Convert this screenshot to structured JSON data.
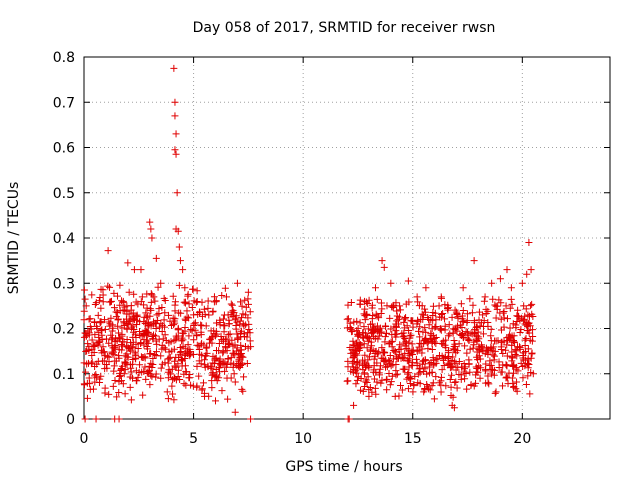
{
  "chart_data": {
    "type": "scatter",
    "title": "Day 058 of 2017, SRMTID for receiver rwsn",
    "xlabel": "GPS time / hours",
    "ylabel": "SRMTID / TECUs",
    "xlim": [
      0,
      24
    ],
    "ylim": [
      0,
      0.8
    ],
    "x_ticks": [
      0,
      5,
      10,
      15,
      20
    ],
    "x_tick_labels": [
      "0",
      "5",
      "10",
      "15",
      "20"
    ],
    "y_ticks": [
      0,
      0.1,
      0.2,
      0.3,
      0.4,
      0.5,
      0.6,
      0.7,
      0.8
    ],
    "y_tick_labels": [
      "0",
      "0.1",
      "0.2",
      "0.3",
      "0.4",
      "0.5",
      "0.6",
      "0.7",
      "0.8"
    ],
    "grid": true,
    "marker": "plus",
    "marker_color": "#e00000",
    "segments": [
      {
        "x_start": 0.0,
        "x_end": 7.6,
        "typical_low": 0.08,
        "typical_high": 0.26
      },
      {
        "x_start": 12.0,
        "x_end": 20.5,
        "typical_low": 0.08,
        "typical_high": 0.24
      }
    ],
    "points": [
      [
        0.02,
        0.285
      ],
      [
        0.05,
        0.265
      ],
      [
        0.1,
        0.25
      ],
      [
        0.6,
        0.2
      ],
      [
        1.1,
        0.372
      ],
      [
        2.0,
        0.345
      ],
      [
        2.3,
        0.33
      ],
      [
        2.6,
        0.33
      ],
      [
        3.0,
        0.435
      ],
      [
        3.05,
        0.42
      ],
      [
        3.1,
        0.4
      ],
      [
        3.3,
        0.355
      ],
      [
        3.5,
        0.3
      ],
      [
        3.5,
        0.09
      ],
      [
        3.8,
        0.06
      ],
      [
        3.85,
        0.045
      ],
      [
        4.1,
        0.775
      ],
      [
        4.15,
        0.7
      ],
      [
        4.15,
        0.67
      ],
      [
        4.2,
        0.63
      ],
      [
        4.15,
        0.595
      ],
      [
        4.2,
        0.585
      ],
      [
        4.25,
        0.5
      ],
      [
        4.2,
        0.42
      ],
      [
        4.3,
        0.415
      ],
      [
        4.35,
        0.38
      ],
      [
        4.4,
        0.35
      ],
      [
        4.5,
        0.33
      ],
      [
        4.6,
        0.29
      ],
      [
        5.0,
        0.23
      ],
      [
        5.5,
        0.05
      ],
      [
        6.0,
        0.04
      ],
      [
        6.5,
        0.27
      ],
      [
        6.8,
        0.24
      ],
      [
        6.9,
        0.015
      ],
      [
        7.0,
        0.3
      ],
      [
        7.5,
        0.28
      ],
      [
        7.6,
        0.16
      ],
      [
        0.05,
        0.0
      ],
      [
        0.55,
        0.0
      ],
      [
        1.4,
        0.0
      ],
      [
        1.6,
        0.0
      ],
      [
        7.6,
        0.0
      ],
      [
        12.05,
        0.0
      ],
      [
        12.1,
        0.0
      ],
      [
        12.3,
        0.03
      ],
      [
        12.8,
        0.26
      ],
      [
        13.3,
        0.29
      ],
      [
        13.6,
        0.35
      ],
      [
        13.7,
        0.335
      ],
      [
        14.0,
        0.3
      ],
      [
        14.4,
        0.25
      ],
      [
        14.8,
        0.305
      ],
      [
        15.2,
        0.27
      ],
      [
        15.6,
        0.29
      ],
      [
        16.3,
        0.27
      ],
      [
        16.8,
        0.03
      ],
      [
        16.9,
        0.025
      ],
      [
        17.3,
        0.29
      ],
      [
        17.8,
        0.35
      ],
      [
        18.3,
        0.27
      ],
      [
        18.6,
        0.3
      ],
      [
        19.0,
        0.31
      ],
      [
        19.3,
        0.33
      ],
      [
        19.5,
        0.29
      ],
      [
        20.0,
        0.3
      ],
      [
        20.2,
        0.32
      ],
      [
        20.3,
        0.39
      ],
      [
        20.4,
        0.33
      ],
      [
        13.0,
        0.05
      ],
      [
        14.2,
        0.05
      ],
      [
        15.5,
        0.06
      ],
      [
        18.8,
        0.06
      ],
      [
        19.6,
        0.07
      ],
      [
        20.5,
        0.1
      ]
    ]
  }
}
